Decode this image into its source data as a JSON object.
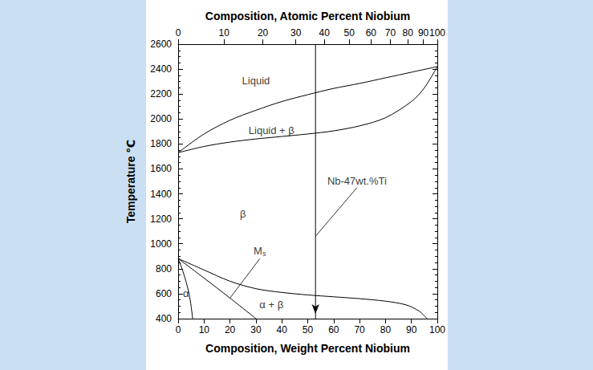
{
  "chart_data": {
    "type": "line",
    "xlabel": "Composition, Weight Percent Niobium",
    "x2label": "Composition, Atomic Percent Niobium",
    "ylabel": "Temperature ℃",
    "xlim": [
      0,
      100
    ],
    "xticks": [
      0,
      10,
      20,
      30,
      40,
      50,
      60,
      70,
      80,
      90,
      100
    ],
    "x2lim": [
      0,
      100
    ],
    "x2ticks": [
      0,
      {
        "value": 17.7,
        "label": "10"
      },
      {
        "value": 32.7,
        "label": "20"
      },
      {
        "value": 45.4,
        "label": "30"
      },
      {
        "value": 56.4,
        "label": "40"
      },
      {
        "value": 66.0,
        "label": "50"
      },
      {
        "value": 74.4,
        "label": "60"
      },
      {
        "value": 81.9,
        "label": "70"
      },
      {
        "value": 88.6,
        "label": "80"
      },
      {
        "value": 94.6,
        "label": "90"
      },
      100
    ],
    "ylim": [
      400,
      2600
    ],
    "yticks": [
      400,
      600,
      800,
      1000,
      1200,
      1400,
      1600,
      1800,
      2000,
      2200,
      2400,
      2600
    ],
    "grid": false,
    "series": [
      {
        "color": "#000000",
        "x": [
          0,
          10,
          20,
          30,
          40,
          50,
          60,
          70,
          80,
          90,
          100
        ],
        "values": [
          1730,
          1880,
          1990,
          2070,
          2140,
          2195,
          2245,
          2285,
          2330,
          2375,
          2420
        ]
      },
      {
        "color": "#000000",
        "x": [
          0,
          10,
          20,
          30,
          40,
          50,
          60,
          70,
          80,
          90,
          95,
          100
        ],
        "values": [
          1730,
          1780,
          1815,
          1840,
          1860,
          1880,
          1905,
          1945,
          2010,
          2140,
          2250,
          2420
        ]
      },
      {
        "color": "#000000",
        "x": [
          0,
          10,
          20,
          30,
          40,
          50,
          60,
          70,
          80,
          88,
          93,
          96
        ],
        "values": [
          882,
          790,
          700,
          640,
          610,
          590,
          575,
          560,
          540,
          510,
          460,
          400
        ]
      },
      {
        "color": "#000000",
        "x": [
          0,
          10,
          20,
          30
        ],
        "values": [
          882,
          725,
          565,
          400
        ]
      },
      {
        "color": "#000000",
        "x": [
          0,
          1.5,
          3,
          4.2,
          5,
          5.6
        ],
        "values": [
          882,
          800,
          700,
          600,
          500,
          400
        ]
      },
      {
        "color": "#000000",
        "x": [
          53,
          53
        ],
        "values": [
          2600,
          400
        ],
        "marker": "arrow"
      }
    ],
    "annotations": [
      {
        "text": "Liquid",
        "x": 30,
        "y": 2310
      },
      {
        "text": "Liquid + β",
        "x": 36,
        "y": 1910
      },
      {
        "text": "β",
        "x": 25,
        "y": 1240
      },
      {
        "text": "M",
        "subscript": "s",
        "x": 31.5,
        "y": 880,
        "points_to": [
          20,
          565
        ]
      },
      {
        "text": "α",
        "x": 3,
        "y": 600
      },
      {
        "text": "α + β",
        "x": 36,
        "y": 510
      },
      {
        "text": "Nb-47wt.%Ti",
        "x": 69,
        "y": 1450,
        "points_to": [
          53,
          1060
        ]
      }
    ]
  }
}
